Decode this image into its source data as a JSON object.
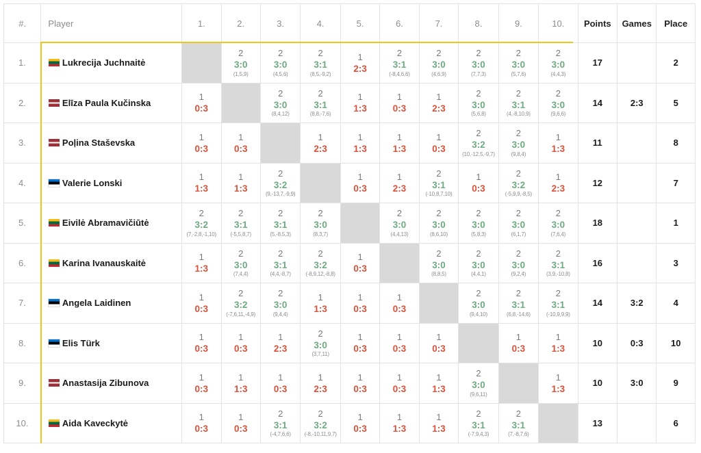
{
  "header": {
    "num": "#.",
    "player": "Player",
    "cols": [
      "1.",
      "2.",
      "3.",
      "4.",
      "5.",
      "6.",
      "7.",
      "8.",
      "9.",
      "10."
    ],
    "points": "Points",
    "games": "Games",
    "place": "Place"
  },
  "rows": [
    {
      "num": "1.",
      "name": "Lukrecija Juchnaitė",
      "flag": "lt",
      "cells": [
        null,
        {
          "p": "2",
          "s": "3:0",
          "d": "(1,5,9)"
        },
        {
          "p": "2",
          "s": "3:0",
          "d": "(4,5,6)"
        },
        {
          "p": "2",
          "s": "3:1",
          "d": "(8,5,-9,2)"
        },
        {
          "p": "1",
          "s": "2:3",
          "d": ""
        },
        {
          "p": "2",
          "s": "3:1",
          "d": "(-8,4,6,6)"
        },
        {
          "p": "2",
          "s": "3:0",
          "d": "(4,6,9)"
        },
        {
          "p": "2",
          "s": "3:0",
          "d": "(7,7,3)"
        },
        {
          "p": "2",
          "s": "3:0",
          "d": "(5,7,6)"
        },
        {
          "p": "2",
          "s": "3:0",
          "d": "(4,4,3)"
        }
      ],
      "points": "17",
      "games": "",
      "place": "2"
    },
    {
      "num": "2.",
      "name": "Elīza Paula Kučinska",
      "flag": "lv",
      "cells": [
        {
          "p": "1",
          "s": "0:3",
          "d": ""
        },
        null,
        {
          "p": "2",
          "s": "3:0",
          "d": "(8,4,12)"
        },
        {
          "p": "2",
          "s": "3:1",
          "d": "(8,8,-7,6)"
        },
        {
          "p": "1",
          "s": "1:3",
          "d": ""
        },
        {
          "p": "1",
          "s": "0:3",
          "d": ""
        },
        {
          "p": "1",
          "s": "2:3",
          "d": ""
        },
        {
          "p": "2",
          "s": "3:0",
          "d": "(5,6,8)"
        },
        {
          "p": "2",
          "s": "3:1",
          "d": "(4,-8,10,9)"
        },
        {
          "p": "2",
          "s": "3:0",
          "d": "(9,6,6)"
        }
      ],
      "points": "14",
      "games": "2:3",
      "place": "5"
    },
    {
      "num": "3.",
      "name": "Poļina Staševska",
      "flag": "lv",
      "cells": [
        {
          "p": "1",
          "s": "0:3",
          "d": ""
        },
        {
          "p": "1",
          "s": "0:3",
          "d": ""
        },
        null,
        {
          "p": "1",
          "s": "2:3",
          "d": ""
        },
        {
          "p": "1",
          "s": "1:3",
          "d": ""
        },
        {
          "p": "1",
          "s": "1:3",
          "d": ""
        },
        {
          "p": "1",
          "s": "0:3",
          "d": ""
        },
        {
          "p": "2",
          "s": "3:2",
          "d": "(10,-12,5,-9,7)"
        },
        {
          "p": "2",
          "s": "3:0",
          "d": "(9,8,4)"
        },
        {
          "p": "1",
          "s": "1:3",
          "d": ""
        }
      ],
      "points": "11",
      "games": "",
      "place": "8"
    },
    {
      "num": "4.",
      "name": "Valerie Lonski",
      "flag": "ee",
      "cells": [
        {
          "p": "1",
          "s": "1:3",
          "d": ""
        },
        {
          "p": "1",
          "s": "1:3",
          "d": ""
        },
        {
          "p": "2",
          "s": "3:2",
          "d": "(9,-13,7,-9,9)"
        },
        null,
        {
          "p": "1",
          "s": "0:3",
          "d": ""
        },
        {
          "p": "1",
          "s": "2:3",
          "d": ""
        },
        {
          "p": "2",
          "s": "3:1",
          "d": "(-10,8,7,10)"
        },
        {
          "p": "1",
          "s": "0:3",
          "d": ""
        },
        {
          "p": "2",
          "s": "3:2",
          "d": "(-5,9,9,-8,5)"
        },
        {
          "p": "1",
          "s": "2:3",
          "d": ""
        }
      ],
      "points": "12",
      "games": "",
      "place": "7"
    },
    {
      "num": "5.",
      "name": "Eivilė Abramavičiūtė",
      "flag": "lt",
      "cells": [
        {
          "p": "2",
          "s": "3:2",
          "d": "(7,-2,8,-1,10)"
        },
        {
          "p": "2",
          "s": "3:1",
          "d": "(-5,5,8,7)"
        },
        {
          "p": "2",
          "s": "3:1",
          "d": "(5,-8,5,3)"
        },
        {
          "p": "2",
          "s": "3:0",
          "d": "(8,3,7)"
        },
        null,
        {
          "p": "2",
          "s": "3:0",
          "d": "(4,4,13)"
        },
        {
          "p": "2",
          "s": "3:0",
          "d": "(8,6,10)"
        },
        {
          "p": "2",
          "s": "3:0",
          "d": "(5,8,3)"
        },
        {
          "p": "2",
          "s": "3:0",
          "d": "(6,1,7)"
        },
        {
          "p": "2",
          "s": "3:0",
          "d": "(7,6,4)"
        }
      ],
      "points": "18",
      "games": "",
      "place": "1"
    },
    {
      "num": "6.",
      "name": "Karina Ivanauskaitė",
      "flag": "lt",
      "cells": [
        {
          "p": "1",
          "s": "1:3",
          "d": ""
        },
        {
          "p": "2",
          "s": "3:0",
          "d": "(7,4,4)"
        },
        {
          "p": "2",
          "s": "3:1",
          "d": "(4,4,-8,7)"
        },
        {
          "p": "2",
          "s": "3:2",
          "d": "(-8,9,12,-8,8)"
        },
        {
          "p": "1",
          "s": "0:3",
          "d": ""
        },
        null,
        {
          "p": "2",
          "s": "3:0",
          "d": "(8,8,5)"
        },
        {
          "p": "2",
          "s": "3:0",
          "d": "(4,4,1)"
        },
        {
          "p": "2",
          "s": "3:0",
          "d": "(9,2,4)"
        },
        {
          "p": "2",
          "s": "3:1",
          "d": "(3,9,-10,8)"
        }
      ],
      "points": "16",
      "games": "",
      "place": "3"
    },
    {
      "num": "7.",
      "name": "Angela Laidinen",
      "flag": "ee",
      "cells": [
        {
          "p": "1",
          "s": "0:3",
          "d": ""
        },
        {
          "p": "2",
          "s": "3:2",
          "d": "(-7,6,11,-4,9)"
        },
        {
          "p": "2",
          "s": "3:0",
          "d": "(9,4,4)"
        },
        {
          "p": "1",
          "s": "1:3",
          "d": ""
        },
        {
          "p": "1",
          "s": "0:3",
          "d": ""
        },
        {
          "p": "1",
          "s": "0:3",
          "d": ""
        },
        null,
        {
          "p": "2",
          "s": "3:0",
          "d": "(9,4,10)"
        },
        {
          "p": "2",
          "s": "3:1",
          "d": "(6,8,-14,6)"
        },
        {
          "p": "2",
          "s": "3:1",
          "d": "(-10,9,9,9)"
        }
      ],
      "points": "14",
      "games": "3:2",
      "place": "4"
    },
    {
      "num": "8.",
      "name": "Elis Türk",
      "flag": "ee",
      "cells": [
        {
          "p": "1",
          "s": "0:3",
          "d": ""
        },
        {
          "p": "1",
          "s": "0:3",
          "d": ""
        },
        {
          "p": "1",
          "s": "2:3",
          "d": ""
        },
        {
          "p": "2",
          "s": "3:0",
          "d": "(3,7,11)"
        },
        {
          "p": "1",
          "s": "0:3",
          "d": ""
        },
        {
          "p": "1",
          "s": "0:3",
          "d": ""
        },
        {
          "p": "1",
          "s": "0:3",
          "d": ""
        },
        null,
        {
          "p": "1",
          "s": "0:3",
          "d": ""
        },
        {
          "p": "1",
          "s": "1:3",
          "d": ""
        }
      ],
      "points": "10",
      "games": "0:3",
      "place": "10"
    },
    {
      "num": "9.",
      "name": "Anastasija Zibunova",
      "flag": "lv",
      "cells": [
        {
          "p": "1",
          "s": "0:3",
          "d": ""
        },
        {
          "p": "1",
          "s": "1:3",
          "d": ""
        },
        {
          "p": "1",
          "s": "0:3",
          "d": ""
        },
        {
          "p": "1",
          "s": "2:3",
          "d": ""
        },
        {
          "p": "1",
          "s": "0:3",
          "d": ""
        },
        {
          "p": "1",
          "s": "0:3",
          "d": ""
        },
        {
          "p": "1",
          "s": "1:3",
          "d": ""
        },
        {
          "p": "2",
          "s": "3:0",
          "d": "(9,6,11)"
        },
        null,
        {
          "p": "1",
          "s": "1:3",
          "d": ""
        }
      ],
      "points": "10",
      "games": "3:0",
      "place": "9"
    },
    {
      "num": "10.",
      "name": "Aida Kaveckytė",
      "flag": "lt",
      "cells": [
        {
          "p": "1",
          "s": "0:3",
          "d": ""
        },
        {
          "p": "1",
          "s": "0:3",
          "d": ""
        },
        {
          "p": "2",
          "s": "3:1",
          "d": "(-4,7,6,6)"
        },
        {
          "p": "2",
          "s": "3:2",
          "d": "(-8,-10,11,9,7)"
        },
        {
          "p": "1",
          "s": "0:3",
          "d": ""
        },
        {
          "p": "1",
          "s": "1:3",
          "d": ""
        },
        {
          "p": "1",
          "s": "1:3",
          "d": ""
        },
        {
          "p": "2",
          "s": "3:1",
          "d": "(-7,9,4,3)"
        },
        {
          "p": "2",
          "s": "3:1",
          "d": "(7,-8,7,6)"
        },
        null
      ],
      "points": "13",
      "games": "",
      "place": "6"
    }
  ],
  "colors": {
    "win": "#6daa80",
    "loss": "#d9513a",
    "highlight": "#f0c419",
    "diagonal": "#d9d9d9"
  }
}
